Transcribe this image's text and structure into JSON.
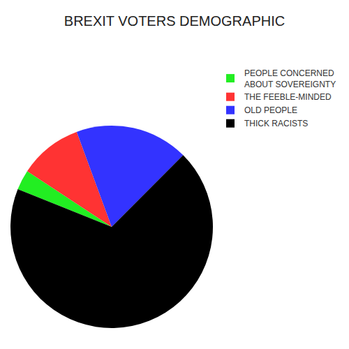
{
  "chart_data": {
    "type": "pie",
    "title": "BREXIT VOTERS DEMOGRAPHIC",
    "categories": [
      "PEOPLE CONCERNED ABOUT SOVEREIGNTY",
      "THE FEEBLE-MINDED",
      "OLD PEOPLE",
      "THICK RACISTS"
    ],
    "values": [
      3.2,
      10.1,
      18.1,
      68.6
    ],
    "colors": [
      "#22ee22",
      "#ff3333",
      "#3333ff",
      "#000000"
    ],
    "legend": "right"
  }
}
